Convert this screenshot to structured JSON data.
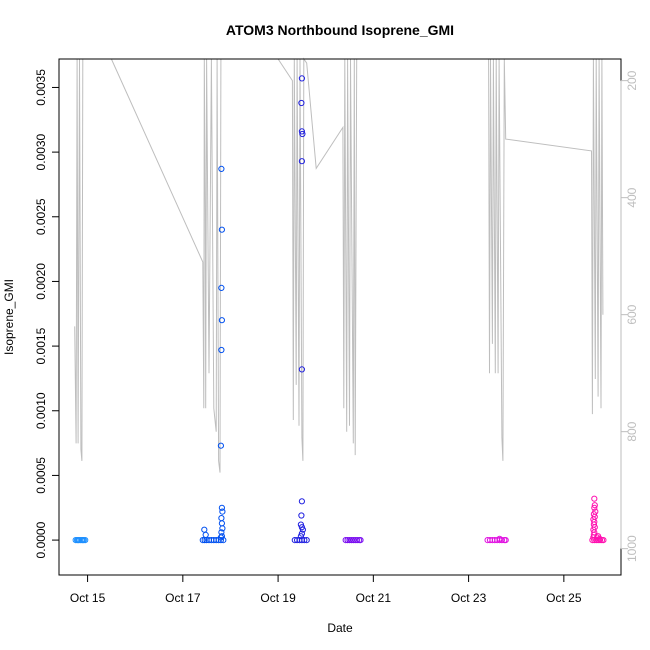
{
  "chart_data": {
    "type": "scatter",
    "title": "ATOM3 Northbound Isoprene_GMI",
    "xlabel": "Date",
    "ylabel": "Isoprene_GMI",
    "x_ticks": [
      "Oct 15",
      "Oct 17",
      "Oct 19",
      "Oct 21",
      "Oct 23",
      "Oct 25"
    ],
    "x_tick_days": [
      15,
      17,
      19,
      21,
      23,
      25
    ],
    "xlim": [
      14.4,
      26.2
    ],
    "y_ticks": [
      "0.0000",
      "0.0005",
      "0.0010",
      "0.0015",
      "0.0020",
      "0.0025",
      "0.0030",
      "0.0035"
    ],
    "y_tick_values": [
      0,
      0.0005,
      0.001,
      0.0015,
      0.002,
      0.0025,
      0.003,
      0.0035
    ],
    "ylim": [
      -0.00027,
      0.00372
    ],
    "y2_ticks": [
      "200",
      "400",
      "600",
      "800",
      "1000"
    ],
    "y2_tick_values": [
      200,
      400,
      600,
      800,
      1000
    ],
    "y2lim": [
      1045,
      163
    ],
    "y2_color": "#bebebe",
    "grid": false,
    "series": [
      {
        "role": "points",
        "color": "#1e90ff",
        "points": [
          [
            14.75,
            0
          ],
          [
            14.78,
            0
          ],
          [
            14.8,
            0
          ],
          [
            14.82,
            0
          ],
          [
            14.85,
            0
          ],
          [
            14.88,
            0
          ],
          [
            14.9,
            0
          ],
          [
            14.92,
            0
          ],
          [
            14.95,
            0
          ]
        ]
      },
      {
        "role": "points",
        "color": "#0050f0",
        "points": [
          [
            17.42,
            0
          ],
          [
            17.46,
            0
          ],
          [
            17.5,
            0
          ],
          [
            17.55,
            0
          ],
          [
            17.6,
            0
          ],
          [
            17.65,
            0
          ],
          [
            17.7,
            0
          ],
          [
            17.75,
            0
          ],
          [
            17.8,
            0
          ],
          [
            17.85,
            0
          ],
          [
            17.45,
            8e-05
          ],
          [
            17.48,
            4e-05
          ],
          [
            17.8,
            2e-05
          ],
          [
            17.82,
            3e-05
          ],
          [
            17.81,
            6e-05
          ],
          [
            17.83,
            9e-05
          ],
          [
            17.82,
            0.00013
          ],
          [
            17.81,
            0.00017
          ],
          [
            17.83,
            0.00022
          ],
          [
            17.82,
            0.00025
          ],
          [
            17.8,
            0.00073
          ],
          [
            17.81,
            0.00147
          ],
          [
            17.82,
            0.0017
          ],
          [
            17.81,
            0.00195
          ],
          [
            17.82,
            0.0024
          ],
          [
            17.81,
            0.00287
          ]
        ]
      },
      {
        "role": "points",
        "color": "#2020e0",
        "points": [
          [
            19.35,
            0
          ],
          [
            19.4,
            0
          ],
          [
            19.45,
            0
          ],
          [
            19.5,
            0
          ],
          [
            19.55,
            0
          ],
          [
            19.6,
            0
          ],
          [
            19.48,
            3e-05
          ],
          [
            19.5,
            5e-05
          ],
          [
            19.52,
            8e-05
          ],
          [
            19.5,
            0.0001
          ],
          [
            19.48,
            0.00012
          ],
          [
            19.49,
            0.00019
          ],
          [
            19.5,
            0.0003
          ],
          [
            19.5,
            0.00132
          ],
          [
            19.5,
            0.00293
          ],
          [
            19.51,
            0.00314
          ],
          [
            19.5,
            0.00316
          ],
          [
            19.49,
            0.00338
          ],
          [
            19.5,
            0.00357
          ]
        ]
      },
      {
        "role": "points",
        "color": "#7b10f0",
        "points": [
          [
            20.42,
            0
          ],
          [
            20.46,
            0
          ],
          [
            20.5,
            0
          ],
          [
            20.54,
            0
          ],
          [
            20.58,
            0
          ],
          [
            20.62,
            0
          ],
          [
            20.66,
            0
          ],
          [
            20.7,
            0
          ],
          [
            20.73,
            0
          ]
        ]
      },
      {
        "role": "points",
        "color": "#e010e0",
        "points": [
          [
            23.4,
            0
          ],
          [
            23.45,
            0
          ],
          [
            23.5,
            0
          ],
          [
            23.55,
            0
          ],
          [
            23.6,
            0
          ],
          [
            23.65,
            0
          ],
          [
            23.7,
            0
          ],
          [
            23.75,
            0
          ],
          [
            23.78,
            0
          ],
          [
            23.65,
            1e-05
          ]
        ]
      },
      {
        "role": "points",
        "color": "#ff10b0",
        "points": [
          [
            25.6,
            0
          ],
          [
            25.64,
            0
          ],
          [
            25.68,
            0
          ],
          [
            25.72,
            0
          ],
          [
            25.76,
            0
          ],
          [
            25.8,
            0
          ],
          [
            25.83,
            0
          ],
          [
            25.62,
            2e-05
          ],
          [
            25.63,
            4e-05
          ],
          [
            25.64,
            6e-05
          ],
          [
            25.62,
            8e-05
          ],
          [
            25.65,
            0.0001
          ],
          [
            25.63,
            0.00012
          ],
          [
            25.64,
            0.00014
          ],
          [
            25.62,
            0.00016
          ],
          [
            25.65,
            0.00018
          ],
          [
            25.63,
            0.0002
          ],
          [
            25.66,
            0.00022
          ],
          [
            25.64,
            0.00025
          ],
          [
            25.65,
            0.00027
          ],
          [
            25.64,
            0.00032
          ],
          [
            25.7,
            2e-05
          ],
          [
            25.72,
            3e-05
          ],
          [
            25.75,
            1e-05
          ]
        ]
      },
      {
        "role": "pressure_trace",
        "axis": "right",
        "color": "#bebebe",
        "points": [
          [
            14.73,
            620
          ],
          [
            14.76,
            820
          ],
          [
            14.78,
            163
          ],
          [
            14.8,
            820
          ],
          [
            14.83,
            163
          ],
          [
            14.86,
            830
          ],
          [
            14.88,
            850
          ],
          [
            14.9,
            163
          ],
          [
            15.5,
            163
          ],
          [
            17.42,
            510
          ],
          [
            17.44,
            760
          ],
          [
            17.45,
            163
          ],
          [
            17.47,
            420
          ],
          [
            17.48,
            760
          ],
          [
            17.5,
            163
          ],
          [
            17.55,
            700
          ],
          [
            17.6,
            163
          ],
          [
            17.65,
            760
          ],
          [
            17.7,
            800
          ],
          [
            17.72,
            163
          ],
          [
            17.75,
            850
          ],
          [
            17.78,
            870
          ],
          [
            17.8,
            163
          ],
          [
            19.0,
            163
          ],
          [
            19.3,
            200
          ],
          [
            19.32,
            780
          ],
          [
            19.34,
            163
          ],
          [
            19.38,
            720
          ],
          [
            19.4,
            163
          ],
          [
            19.44,
            790
          ],
          [
            19.46,
            163
          ],
          [
            19.5,
            810
          ],
          [
            19.52,
            850
          ],
          [
            19.54,
            163
          ],
          [
            19.6,
            170
          ],
          [
            19.8,
            350
          ],
          [
            20.36,
            280
          ],
          [
            20.38,
            760
          ],
          [
            20.4,
            163
          ],
          [
            20.44,
            800
          ],
          [
            20.46,
            163
          ],
          [
            20.5,
            790
          ],
          [
            20.52,
            163
          ],
          [
            20.58,
            820
          ],
          [
            20.6,
            163
          ],
          [
            20.62,
            840
          ],
          [
            20.65,
            163
          ],
          [
            23.42,
            163
          ],
          [
            23.44,
            700
          ],
          [
            23.46,
            163
          ],
          [
            23.5,
            650
          ],
          [
            23.52,
            163
          ],
          [
            23.56,
            700
          ],
          [
            23.58,
            163
          ],
          [
            23.62,
            700
          ],
          [
            23.64,
            163
          ],
          [
            23.7,
            810
          ],
          [
            23.72,
            850
          ],
          [
            23.75,
            163
          ],
          [
            23.78,
            300
          ],
          [
            25.58,
            320
          ],
          [
            25.6,
            770
          ],
          [
            25.62,
            163
          ],
          [
            25.66,
            710
          ],
          [
            25.68,
            163
          ],
          [
            25.72,
            740
          ],
          [
            25.74,
            163
          ],
          [
            25.78,
            760
          ],
          [
            25.8,
            163
          ],
          [
            25.82,
            600
          ]
        ]
      }
    ]
  }
}
